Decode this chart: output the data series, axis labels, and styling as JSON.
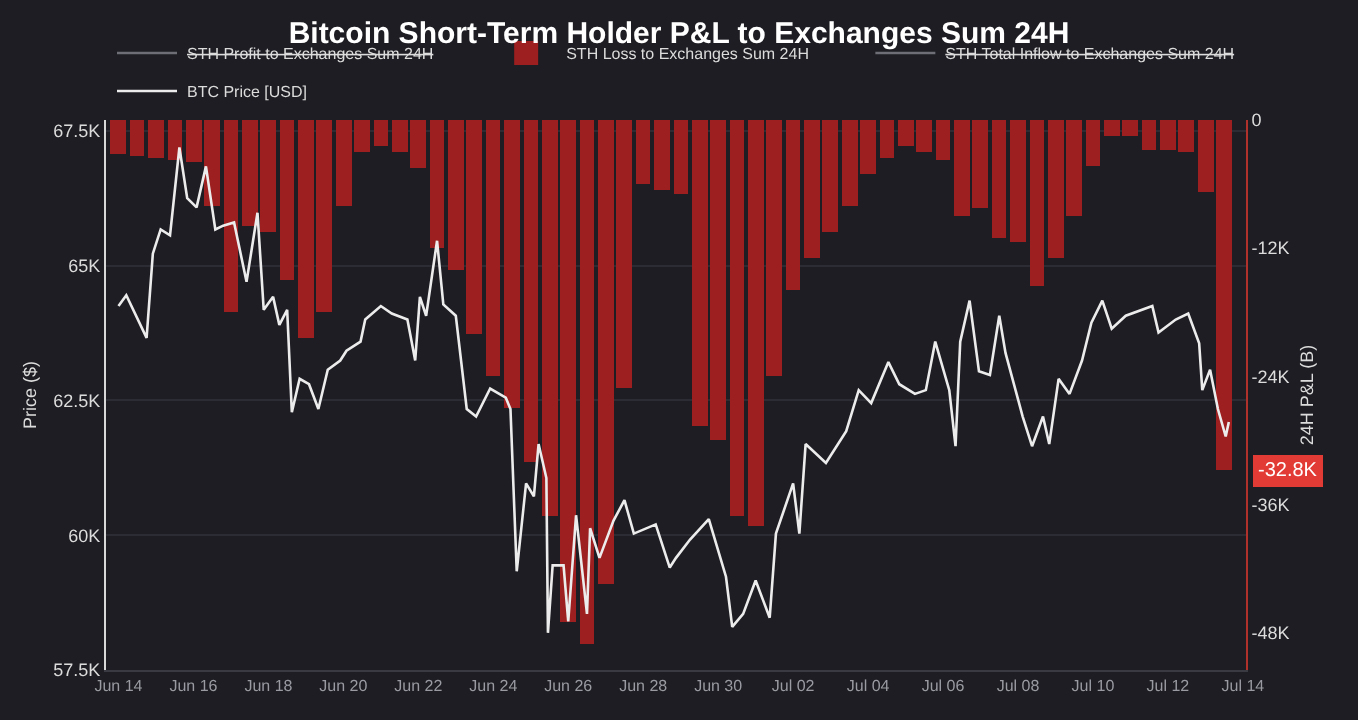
{
  "chart_data": {
    "type": "line",
    "title": "Bitcoin Short-Term Holder P&L to Exchanges Sum 24H",
    "ylabel": "Price ($)",
    "y2label": "24H P&L (B)",
    "xlim": [
      "--06-13T16:00",
      "--07-14T02:00"
    ],
    "xticks": [
      {
        "value": "--06-14",
        "label": "Jun 14"
      },
      {
        "value": "--06-16",
        "label": "Jun 16"
      },
      {
        "value": "--06-18",
        "label": "Jun 18"
      },
      {
        "value": "--06-20",
        "label": "Jun 20"
      },
      {
        "value": "--06-22",
        "label": "Jun 22"
      },
      {
        "value": "--06-24",
        "label": "Jun 24"
      },
      {
        "value": "--06-26",
        "label": "Jun 26"
      },
      {
        "value": "--06-28",
        "label": "Jun 28"
      },
      {
        "value": "--06-30",
        "label": "Jun 30"
      },
      {
        "value": "--07-02",
        "label": "Jul 02"
      },
      {
        "value": "--07-04",
        "label": "Jul 04"
      },
      {
        "value": "--07-06",
        "label": "Jul 06"
      },
      {
        "value": "--07-08",
        "label": "Jul 08"
      },
      {
        "value": "--07-10",
        "label": "Jul 10"
      },
      {
        "value": "--07-12",
        "label": "Jul 12"
      },
      {
        "value": "--07-14",
        "label": "Jul 14"
      }
    ],
    "ylim": [
      57500,
      67700
    ],
    "yticks": [
      {
        "value": 57500,
        "label": "57.5K"
      },
      {
        "value": 60000,
        "label": "60K"
      },
      {
        "value": 62500,
        "label": "62.5K"
      },
      {
        "value": 65000,
        "label": "65K"
      },
      {
        "value": 67500,
        "label": "67.5K"
      }
    ],
    "y2lim": [
      -51500,
      0
    ],
    "y2ticks": [
      {
        "value": -48000,
        "label": "-48K"
      },
      {
        "value": -36000,
        "label": "-36K"
      },
      {
        "value": -24000,
        "label": "-24K"
      },
      {
        "value": -12000,
        "label": "-12K"
      },
      0
    ],
    "grid": "y",
    "legend": "top",
    "annotations": [
      "-32.8K"
    ],
    "series": [
      {
        "name": "STH Profit to Exchanges Sum 24H",
        "color": "#6e6e76"
      },
      {
        "name": "STH Loss to Exchanges Sum 24H",
        "type": "bar",
        "axis": "y2",
        "color": "#9e1f1f",
        "x": [
          "--06-14T00:00",
          "--06-14T12:00",
          "--06-15T00:00",
          "--06-15T12:00",
          "--06-16T00:00",
          "--06-16T12:00",
          "--06-17T00:00",
          "--06-17T12:00",
          "--06-18T00:00",
          "--06-18T12:00",
          "--06-19T00:00",
          "--06-19T12:00",
          "--06-20T00:00",
          "--06-20T12:00",
          "--06-21T00:00",
          "--06-21T12:00",
          "--06-22T00:00",
          "--06-22T12:00",
          "--06-23T00:00",
          "--06-23T12:00",
          "--06-24T00:00",
          "--06-24T12:00",
          "--06-25T00:00",
          "--06-25T12:00",
          "--06-26T00:00",
          "--06-26T12:00",
          "--06-27T00:00",
          "--06-27T12:00",
          "--06-28T00:00",
          "--06-28T12:00",
          "--06-29T00:00",
          "--06-29T12:00",
          "--06-30T00:00",
          "--06-30T12:00",
          "--07-01T00:00",
          "--07-01T12:00",
          "--07-02T00:00",
          "--07-02T12:00",
          "--07-03T00:00",
          "--07-03T12:00",
          "--07-04T00:00",
          "--07-04T12:00",
          "--07-05T00:00",
          "--07-05T12:00",
          "--07-06T00:00",
          "--07-06T12:00",
          "--07-07T00:00",
          "--07-07T12:00",
          "--07-08T00:00",
          "--07-08T12:00",
          "--07-09T00:00",
          "--07-09T12:00",
          "--07-10T00:00",
          "--07-10T12:00",
          "--07-11T00:00",
          "--07-11T12:00",
          "--07-12T00:00",
          "--07-12T12:00",
          "--07-13T00:00",
          "--07-13T12:00"
        ],
        "values": [
          -3200,
          -3400,
          -3500,
          -3700,
          -3900,
          -8000,
          -18000,
          -10000,
          -10500,
          -15000,
          -20500,
          -18000,
          -8000,
          -3000,
          -2500,
          -3000,
          -4500,
          -12000,
          -14000,
          -20000,
          -24000,
          -27000,
          -32000,
          -37000,
          -47000,
          -49000,
          -43400,
          -25000,
          -6000,
          -6500,
          -7000,
          -28700,
          -30000,
          -37000,
          -38000,
          -24000,
          -16000,
          -13000,
          -10500,
          -8000,
          -5000,
          -3500,
          -2500,
          -3000,
          -3700,
          -9000,
          -8300,
          -11000,
          -11400,
          -15500,
          -13000,
          -9000,
          -4300,
          -1500,
          -1500,
          -2800,
          -2800,
          -3000,
          -6700,
          -32800
        ]
      },
      {
        "name": "STH Total Inflow to Exchanges Sum 24H",
        "color": "#6e6e76"
      },
      {
        "name": "BTC Price [USD]",
        "color": "#ececec",
        "x": [
          "--06-14T00:00",
          "--06-14T05:00",
          "--06-14T18:00",
          "--06-14T22:00",
          "--06-15T03:00",
          "--06-15T09:00",
          "--06-15T15:00",
          "--06-15T20:00",
          "--06-16T02:00",
          "--06-16T08:00",
          "--06-16T14:00",
          "--06-16T19:00",
          "--06-17T02:00",
          "--06-17T10:00",
          "--06-17T17:00",
          "--06-17T21:00",
          "--06-18T03:00",
          "--06-18T07:00",
          "--06-18T12:00",
          "--06-18T15:00",
          "--06-18T20:00",
          "--06-19T02:00",
          "--06-19T08:00",
          "--06-19T14:00",
          "--06-19T22:00",
          "--06-20T02:00",
          "--06-20T11:00",
          "--06-20T14:00",
          "--06-21T00:00",
          "--06-21T07:00",
          "--06-21T17:00",
          "--06-21T22:00",
          "--06-22T01:00",
          "--06-22T05:00",
          "--06-22T12:00",
          "--06-22T16:00",
          "--06-23T00:00",
          "--06-23T07:00",
          "--06-23T13:00",
          "--06-23T22:00",
          "--06-24T08:00",
          "--06-24T11:00",
          "--06-24T15:00",
          "--06-24T21:00",
          "--06-25T02:00",
          "--06-25T05:00",
          "--06-25T10:00",
          "--06-25T11:00",
          "--06-25T14:00",
          "--06-25T21:00",
          "--06-26T00:00",
          "--06-26T05:00",
          "--06-26T12:00",
          "--06-26T14:00",
          "--06-26T20:00",
          "--06-27T05:00",
          "--06-27T12:00",
          "--06-27T18:00",
          "--06-28T08:00",
          "--06-28T17:00",
          "--06-28T21:00",
          "--06-29T06:00",
          "--06-29T18:00",
          "--06-30T05:00",
          "--06-30T09:00",
          "--06-30T16:00",
          "--07-01T00:00",
          "--07-01T09:00",
          "--07-01T13:00",
          "--07-02T00:00",
          "--07-02T04:00",
          "--07-02T08:00",
          "--07-02T21:00",
          "--07-03T10:00",
          "--07-03T18:00",
          "--07-04T02:00",
          "--07-04T13:00",
          "--07-04T20:00",
          "--07-05T06:00",
          "--07-05T13:00",
          "--07-05T19:00",
          "--07-06T04:00",
          "--07-06T08:00",
          "--07-06T11:00",
          "--07-06T17:00",
          "--07-06T23:00",
          "--07-07T06:00",
          "--07-07T12:00",
          "--07-07T16:00",
          "--07-08T03:00",
          "--07-08T09:00",
          "--07-08T16:00",
          "--07-08T20:00",
          "--07-09T02:00",
          "--07-09T09:00",
          "--07-09T17:00",
          "--07-09T23:00",
          "--07-10T06:00",
          "--07-10T12:00",
          "--07-10T21:00",
          "--07-11T14:00",
          "--07-11T18:00",
          "--07-12T05:00",
          "--07-12T13:00",
          "--07-12T20:00",
          "--07-12T22:00",
          "--07-13T03:00",
          "--07-13T08:00",
          "--07-13T13:00",
          "--07-13T15:00"
        ],
        "values": [
          64250,
          64450,
          63660,
          65220,
          65670,
          65560,
          67190,
          66250,
          66080,
          66840,
          65670,
          65740,
          65800,
          64700,
          65980,
          64180,
          64420,
          63900,
          64180,
          62280,
          62900,
          62800,
          62340,
          63070,
          63240,
          63420,
          63590,
          64000,
          64250,
          64110,
          64000,
          63240,
          64420,
          64070,
          65460,
          64280,
          64070,
          62340,
          62200,
          62720,
          62550,
          62340,
          59330,
          60960,
          60720,
          61690,
          61060,
          58190,
          59440,
          59440,
          58400,
          60370,
          58540,
          60130,
          59580,
          60270,
          60650,
          60030,
          60200,
          59400,
          59580,
          59920,
          60300,
          59230,
          58300,
          58540,
          59160,
          58470,
          60030,
          60960,
          60030,
          61690,
          61340,
          61930,
          62690,
          62450,
          63210,
          62800,
          62620,
          62690,
          63590,
          62690,
          61650,
          63590,
          64350,
          63040,
          62970,
          64070,
          63380,
          62200,
          61650,
          62200,
          61690,
          62900,
          62620,
          63240,
          63940,
          64350,
          63830,
          64070,
          64250,
          63760,
          64000,
          64110,
          63560,
          62690,
          63070,
          62340,
          61830,
          62100
        ]
      }
    ]
  }
}
